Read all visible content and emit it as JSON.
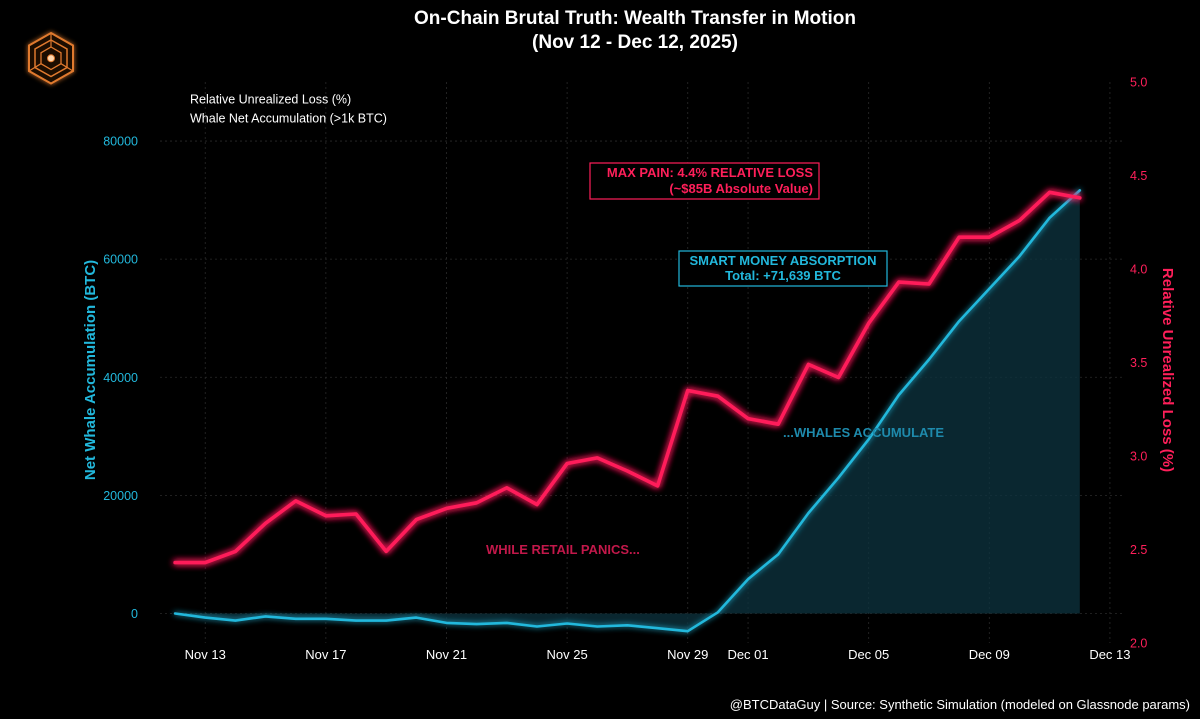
{
  "chart_data": {
    "type": "line",
    "title": "On-Chain Brutal Truth: Wealth Transfer in Motion",
    "subtitle": "(Nov 12 - Dec 12, 2025)",
    "y_left_label": "Net Whale Accumulation (BTC)",
    "y_right_label": "Relative Unrealized Loss (%)",
    "y_left_range": [
      -5000,
      90000
    ],
    "y_right_range": [
      2.0,
      5.0
    ],
    "y_left_ticks": [
      0,
      20000,
      40000,
      60000,
      80000
    ],
    "y_right_ticks": [
      2.0,
      2.5,
      3.0,
      3.5,
      4.0,
      4.5,
      5.0
    ],
    "y_left_tick_labels": [
      "0",
      "20000",
      "40000",
      "60000",
      "80000"
    ],
    "y_right_tick_labels": [
      "2.0",
      "2.5",
      "3.0",
      "3.5",
      "4.0",
      "4.5",
      "5.0"
    ],
    "x_range": [
      -0.5,
      31.5
    ],
    "x_tick_positions": [
      1,
      5,
      9,
      13,
      17,
      19,
      23,
      27,
      31
    ],
    "x_tick_labels": [
      "Nov 13",
      "Nov 17",
      "Nov 21",
      "Nov 25",
      "Nov 29",
      "Dec 01",
      "Dec 05",
      "Dec 09",
      "Dec 13"
    ],
    "grid": true,
    "legend_position": "top-left",
    "colors": {
      "loss": "#ff1f5a",
      "whale": "#22b8dc",
      "background": "#000000",
      "grid": "#2a2a2a"
    },
    "series": [
      {
        "name": "Relative Unrealized Loss (%)",
        "axis": "right",
        "color": "#ff1f5a",
        "values": [
          2.43,
          2.43,
          2.49,
          2.64,
          2.76,
          2.68,
          2.69,
          2.49,
          2.66,
          2.72,
          2.75,
          2.83,
          2.74,
          2.96,
          2.99,
          2.92,
          2.84,
          3.35,
          3.32,
          3.2,
          3.17,
          3.49,
          3.42,
          3.71,
          3.93,
          3.92,
          4.17,
          4.17,
          4.26,
          4.41,
          4.38
        ]
      },
      {
        "name": "Whale Net Accumulation (>1k BTC)",
        "axis": "left",
        "color": "#22b8dc",
        "values": [
          0,
          -700,
          -1200,
          -500,
          -900,
          -900,
          -1200,
          -1200,
          -700,
          -1600,
          -1800,
          -1600,
          -2200,
          -1700,
          -2200,
          -2000,
          -2500,
          -3000,
          200,
          5800,
          10000,
          17000,
          23000,
          29500,
          37000,
          43000,
          49500,
          55000,
          60500,
          67000,
          71639
        ]
      }
    ],
    "annotations": {
      "max_pain_line1": "MAX PAIN: 4.4% RELATIVE LOSS",
      "max_pain_line2": "(~$85B Absolute Value)",
      "smart_money_line1": "SMART MONEY ABSORPTION",
      "smart_money_line2": "Total: +71,639 BTC",
      "retail": "WHILE RETAIL PANICS...",
      "whales": "...WHALES ACCUMULATE"
    }
  },
  "footer": "@BTCDataGuy | Source: Synthetic Simulation (modeled on Glassnode params)",
  "logo": {
    "icon": "hexagon-maze-logo-icon",
    "color": "#e07a2e"
  }
}
